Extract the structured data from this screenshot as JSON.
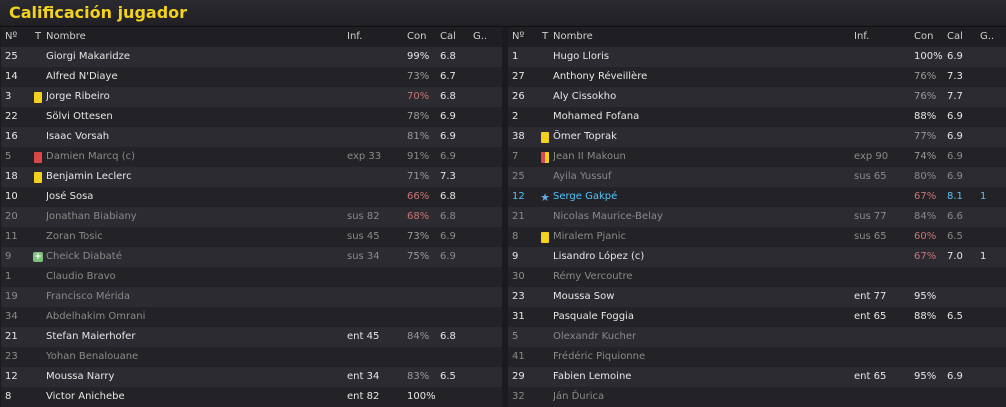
{
  "title": "Calificación jugador",
  "headers": {
    "num": "Nº",
    "t": "T",
    "name": "Nombre",
    "inf": "Inf.",
    "con": "Con",
    "cal": "Cal",
    "g": "G.."
  },
  "colors": {
    "title": "#f2d21c",
    "yellow_card": "#f2d21c",
    "red_card": "#d84848",
    "highlight": "#4fc3f7",
    "low_condition": "#c97474"
  },
  "home": [
    {
      "num": "25",
      "icon": "",
      "name": "Giorgi Makaridze",
      "inf": "",
      "con": "99%",
      "cal": "6.8",
      "g": "",
      "style": "",
      "con_style": ""
    },
    {
      "num": "14",
      "icon": "",
      "name": "Alfred N'Diaye",
      "inf": "",
      "con": "73%",
      "cal": "6.7",
      "g": "",
      "style": "",
      "con_style": "mid"
    },
    {
      "num": "3",
      "icon": "yellow-card",
      "name": "Jorge Ribeiro",
      "inf": "",
      "con": "70%",
      "cal": "6.8",
      "g": "",
      "style": "",
      "con_style": "low"
    },
    {
      "num": "22",
      "icon": "",
      "name": "Sölvi Ottesen",
      "inf": "",
      "con": "78%",
      "cal": "6.9",
      "g": "",
      "style": "",
      "con_style": "mid"
    },
    {
      "num": "16",
      "icon": "",
      "name": "Isaac Vorsah",
      "inf": "",
      "con": "81%",
      "cal": "6.9",
      "g": "",
      "style": "",
      "con_style": "mid"
    },
    {
      "num": "5",
      "icon": "red-card",
      "name": "Damien Marcq (c)",
      "inf": "exp 33",
      "con": "91%",
      "cal": "6.9",
      "g": "",
      "style": "dim",
      "con_style": ""
    },
    {
      "num": "18",
      "icon": "yellow-card",
      "name": "Benjamin Leclerc",
      "inf": "",
      "con": "71%",
      "cal": "7.3",
      "g": "",
      "style": "",
      "con_style": "mid"
    },
    {
      "num": "10",
      "icon": "",
      "name": "José Sosa",
      "inf": "",
      "con": "66%",
      "cal": "6.8",
      "g": "",
      "style": "",
      "con_style": "low"
    },
    {
      "num": "20",
      "icon": "",
      "name": "Jonathan Biabiany",
      "inf": "sus 82",
      "con": "68%",
      "cal": "6.8",
      "g": "",
      "style": "dim",
      "con_style": "low"
    },
    {
      "num": "11",
      "icon": "",
      "name": "Zoran Tosic",
      "inf": "sus 45",
      "con": "73%",
      "cal": "6.9",
      "g": "",
      "style": "dim",
      "con_style": "mid"
    },
    {
      "num": "9",
      "icon": "plus",
      "name": "Cheick Diabaté",
      "inf": "sus 34",
      "con": "75%",
      "cal": "6.9",
      "g": "",
      "style": "dim",
      "con_style": "mid"
    },
    {
      "num": "1",
      "icon": "",
      "name": "Claudio Bravo",
      "inf": "",
      "con": "",
      "cal": "",
      "g": "",
      "style": "dim",
      "con_style": ""
    },
    {
      "num": "19",
      "icon": "",
      "name": "Francisco Mérida",
      "inf": "",
      "con": "",
      "cal": "",
      "g": "",
      "style": "dim",
      "con_style": ""
    },
    {
      "num": "34",
      "icon": "",
      "name": "Abdelhakim Omrani",
      "inf": "",
      "con": "",
      "cal": "",
      "g": "",
      "style": "dim",
      "con_style": ""
    },
    {
      "num": "21",
      "icon": "",
      "name": "Stefan Maierhofer",
      "inf": "ent 45",
      "con": "84%",
      "cal": "6.8",
      "g": "",
      "style": "",
      "con_style": "mid"
    },
    {
      "num": "23",
      "icon": "",
      "name": "Yohan Benalouane",
      "inf": "",
      "con": "",
      "cal": "",
      "g": "",
      "style": "dim",
      "con_style": ""
    },
    {
      "num": "12",
      "icon": "",
      "name": "Moussa Narry",
      "inf": "ent 34",
      "con": "83%",
      "cal": "6.5",
      "g": "",
      "style": "",
      "con_style": "mid"
    },
    {
      "num": "8",
      "icon": "",
      "name": "Victor Anichebe",
      "inf": "ent 82",
      "con": "100%",
      "cal": "",
      "g": "",
      "style": "",
      "con_style": ""
    }
  ],
  "away": [
    {
      "num": "1",
      "icon": "",
      "name": "Hugo Lloris",
      "inf": "",
      "con": "100%",
      "cal": "6.9",
      "g": "",
      "style": "",
      "con_style": ""
    },
    {
      "num": "27",
      "icon": "",
      "name": "Anthony Réveillère",
      "inf": "",
      "con": "76%",
      "cal": "7.3",
      "g": "",
      "style": "",
      "con_style": "mid"
    },
    {
      "num": "26",
      "icon": "",
      "name": "Aly Cissokho",
      "inf": "",
      "con": "76%",
      "cal": "7.7",
      "g": "",
      "style": "",
      "con_style": "mid"
    },
    {
      "num": "2",
      "icon": "",
      "name": "Mohamed Fofana",
      "inf": "",
      "con": "88%",
      "cal": "6.9",
      "g": "",
      "style": "",
      "con_style": ""
    },
    {
      "num": "38",
      "icon": "yellow-card",
      "name": "Ömer Toprak",
      "inf": "",
      "con": "77%",
      "cal": "6.9",
      "g": "",
      "style": "",
      "con_style": "mid"
    },
    {
      "num": "7",
      "icon": "yellow-red-card",
      "name": "Jean II Makoun",
      "inf": "exp 90",
      "con": "74%",
      "cal": "6.9",
      "g": "",
      "style": "dim",
      "con_style": "mid"
    },
    {
      "num": "25",
      "icon": "",
      "name": "Ayila Yussuf",
      "inf": "sus 65",
      "con": "80%",
      "cal": "6.9",
      "g": "",
      "style": "dim",
      "con_style": ""
    },
    {
      "num": "12",
      "icon": "star",
      "name": "Serge Gakpé",
      "inf": "",
      "con": "67%",
      "cal": "8.1",
      "g": "1",
      "style": "blue",
      "con_style": "low"
    },
    {
      "num": "21",
      "icon": "",
      "name": "Nicolas Maurice-Belay",
      "inf": "sus 77",
      "con": "84%",
      "cal": "6.6",
      "g": "",
      "style": "dim",
      "con_style": ""
    },
    {
      "num": "8",
      "icon": "yellow-card",
      "name": "Miralem Pjanic",
      "inf": "sus 65",
      "con": "60%",
      "cal": "6.5",
      "g": "",
      "style": "dim",
      "con_style": "low"
    },
    {
      "num": "9",
      "icon": "",
      "name": "Lisandro López (c)",
      "inf": "",
      "con": "67%",
      "cal": "7.0",
      "g": "1",
      "style": "",
      "con_style": "low"
    },
    {
      "num": "30",
      "icon": "",
      "name": "Rémy Vercoutre",
      "inf": "",
      "con": "",
      "cal": "",
      "g": "",
      "style": "dim",
      "con_style": ""
    },
    {
      "num": "23",
      "icon": "",
      "name": "Moussa Sow",
      "inf": "ent 77",
      "con": "95%",
      "cal": "",
      "g": "",
      "style": "",
      "con_style": ""
    },
    {
      "num": "31",
      "icon": "",
      "name": "Pasquale Foggia",
      "inf": "ent 65",
      "con": "88%",
      "cal": "6.5",
      "g": "",
      "style": "",
      "con_style": ""
    },
    {
      "num": "5",
      "icon": "",
      "name": "Olexandr Kucher",
      "inf": "",
      "con": "",
      "cal": "",
      "g": "",
      "style": "dim",
      "con_style": ""
    },
    {
      "num": "41",
      "icon": "",
      "name": "Frédéric Piquionne",
      "inf": "",
      "con": "",
      "cal": "",
      "g": "",
      "style": "dim",
      "con_style": ""
    },
    {
      "num": "29",
      "icon": "",
      "name": "Fabien Lemoine",
      "inf": "ent 65",
      "con": "95%",
      "cal": "6.9",
      "g": "",
      "style": "",
      "con_style": ""
    },
    {
      "num": "32",
      "icon": "",
      "name": "Ján Ďurica",
      "inf": "",
      "con": "",
      "cal": "",
      "g": "",
      "style": "dim",
      "con_style": ""
    }
  ]
}
